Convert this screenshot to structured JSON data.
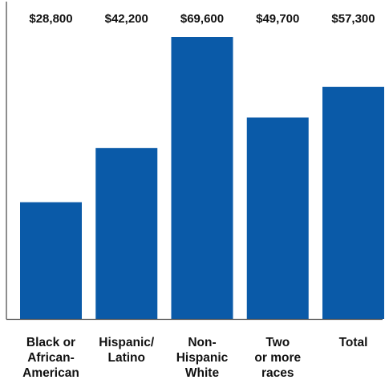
{
  "chart_data": {
    "type": "bar",
    "categories": [
      [
        "Black or",
        "African-",
        "American"
      ],
      [
        "Hispanic/",
        "Latino"
      ],
      [
        "Non-",
        "Hispanic",
        "White"
      ],
      [
        "Two",
        "or more",
        "races"
      ],
      [
        "Total"
      ]
    ],
    "values": [
      28800,
      42200,
      69600,
      49700,
      57300
    ],
    "value_labels": [
      "$28,800",
      "$42,200",
      "$69,600",
      "$49,700",
      "$57,300"
    ],
    "title": "",
    "xlabel": "",
    "ylabel": "",
    "ylim": [
      0,
      69600
    ],
    "grid": false,
    "bar_color": "#0a5aa8",
    "axis_color": "#444444"
  }
}
